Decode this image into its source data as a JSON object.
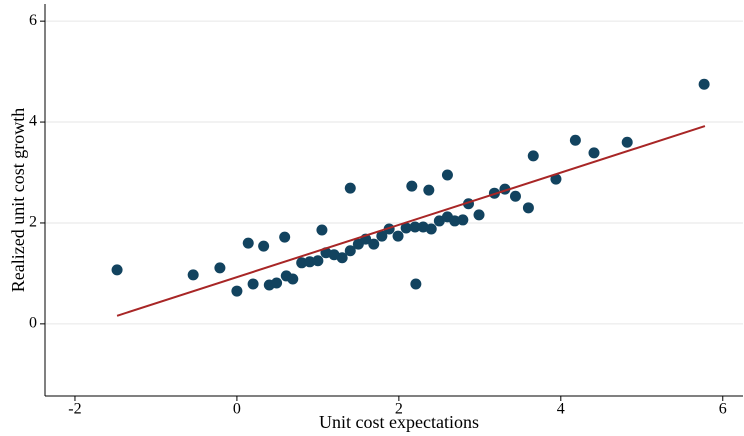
{
  "chart_data": {
    "type": "scatter",
    "x_label": "Unit cost expectations",
    "y_label": "Realized unit cost growth",
    "xlim": [
      -2.37,
      6.25
    ],
    "ylim": [
      -1.43,
      6.34
    ],
    "xticks": [
      -2,
      0,
      2,
      4,
      6
    ],
    "yticks": [
      0,
      2,
      4,
      6
    ],
    "grid": true,
    "color": "#12435f",
    "x": [
      -1.48,
      -0.54,
      -0.21,
      0,
      0.14,
      0.2,
      0.33,
      0.4,
      0.49,
      0.59,
      0.61,
      0.69,
      0.8,
      0.9,
      1.0,
      1.05,
      1.1,
      1.2,
      1.3,
      1.4,
      1.4,
      1.5,
      1.59,
      1.69,
      1.79,
      1.88,
      1.99,
      2.09,
      2.16,
      2.2,
      2.21,
      2.3,
      2.37,
      2.4,
      2.5,
      2.6,
      2.6,
      2.69,
      2.79,
      2.86,
      2.99,
      3.18,
      3.31,
      3.44,
      3.6,
      3.66,
      3.94,
      4.18,
      4.41,
      4.82,
      5.77
    ],
    "values": [
      1.07,
      0.97,
      1.11,
      0.65,
      1.6,
      0.79,
      1.54,
      0.77,
      0.81,
      1.72,
      0.95,
      0.89,
      1.21,
      1.23,
      1.25,
      1.86,
      1.41,
      1.37,
      1.31,
      2.69,
      1.45,
      1.58,
      1.68,
      1.58,
      1.74,
      1.88,
      1.74,
      1.9,
      2.73,
      1.92,
      0.79,
      1.92,
      2.65,
      1.88,
      2.04,
      2.95,
      2.12,
      2.04,
      2.06,
      2.38,
      2.16,
      2.59,
      2.67,
      2.53,
      2.3,
      3.33,
      2.87,
      3.64,
      3.39,
      3.6,
      4.75
    ],
    "fit_line": {
      "x": [
        -1.48,
        5.78
      ],
      "values": [
        0.16,
        3.92
      ],
      "color": "#a82626"
    }
  }
}
